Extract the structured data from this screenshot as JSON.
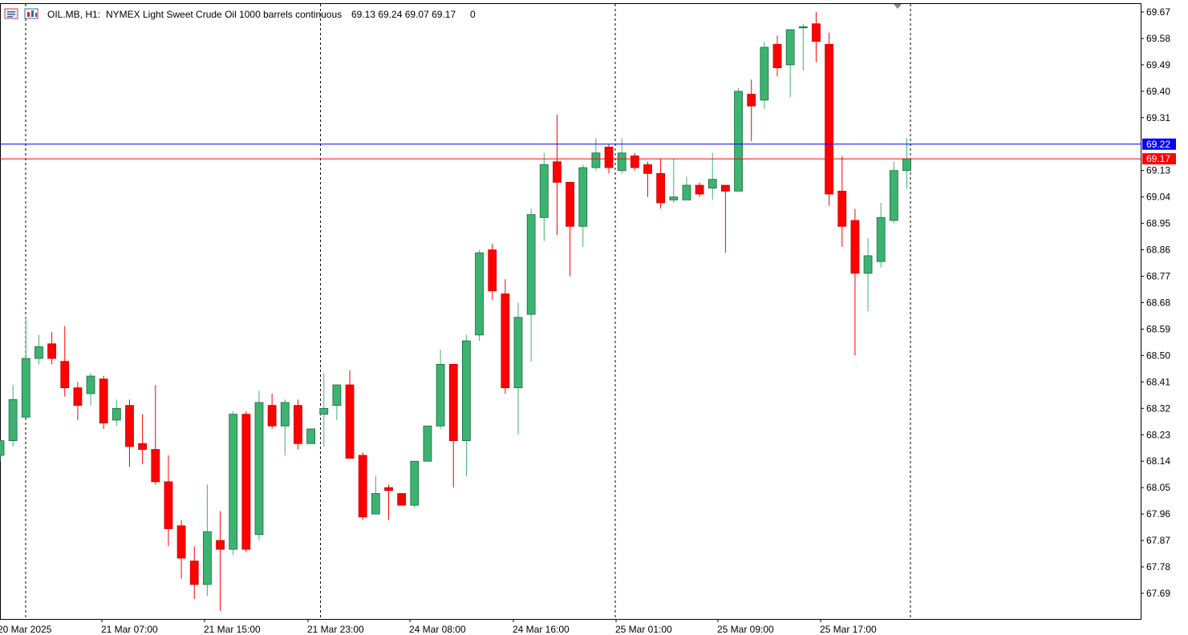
{
  "header": {
    "symbol": "OIL.MB, H1:",
    "description": "NYMEX Light Sweet Crude Oil 1000 barrels continuous",
    "ohlc": "69.13 69.24 69.07 69.17",
    "extra": "0",
    "icon_left": "terminal-icon",
    "icon_right": "chart-icon"
  },
  "colors": {
    "bull": "#3cb371",
    "bear": "#ff0000",
    "bid_line": "#ff0000",
    "ask_line": "#0000ff",
    "grid": "#000000",
    "background": "#ffffff"
  },
  "chart_data": {
    "type": "candlestick",
    "symbol": "OIL.MB",
    "timeframe": "H1",
    "y_ticks": [
      "69.67",
      "69.58",
      "69.49",
      "69.40",
      "69.31",
      "69.13",
      "69.04",
      "68.95",
      "68.86",
      "68.77",
      "68.68",
      "68.59",
      "68.50",
      "68.41",
      "68.32",
      "68.23",
      "68.14",
      "68.05",
      "67.96",
      "67.87",
      "67.78",
      "67.69"
    ],
    "x_ticks": [
      "20 Mar 2025",
      "21 Mar 07:00",
      "21 Mar 15:00",
      "21 Mar 23:00",
      "24 Mar 08:00",
      "24 Mar 16:00",
      "25 Mar 01:00",
      "25 Mar 09:00",
      "25 Mar 17:00"
    ],
    "session_separators": [
      "21 Mar",
      "22 Mar",
      "25 Mar",
      "26 Mar"
    ],
    "ylim": [
      67.625,
      69.69
    ],
    "price_lines": [
      {
        "label": "69.22",
        "value": 69.22,
        "kind": "ask"
      },
      {
        "label": "69.17",
        "value": 69.17,
        "kind": "bid"
      }
    ],
    "candles": [
      {
        "o": 68.16,
        "h": 68.21,
        "l": 68.14,
        "c": 68.21
      },
      {
        "o": 68.21,
        "h": 68.4,
        "l": 68.19,
        "c": 68.35
      },
      {
        "o": 68.29,
        "h": 68.63,
        "l": 68.29,
        "c": 68.49
      },
      {
        "o": 68.49,
        "h": 68.57,
        "l": 68.47,
        "c": 68.53
      },
      {
        "o": 68.54,
        "h": 68.58,
        "l": 68.47,
        "c": 68.49
      },
      {
        "o": 68.48,
        "h": 68.6,
        "l": 68.36,
        "c": 68.39
      },
      {
        "o": 68.39,
        "h": 68.41,
        "l": 68.28,
        "c": 68.33
      },
      {
        "o": 68.37,
        "h": 68.44,
        "l": 68.33,
        "c": 68.43
      },
      {
        "o": 68.42,
        "h": 68.43,
        "l": 68.25,
        "c": 68.27
      },
      {
        "o": 68.28,
        "h": 68.35,
        "l": 68.26,
        "c": 68.32
      },
      {
        "o": 68.33,
        "h": 68.35,
        "l": 68.12,
        "c": 68.19
      },
      {
        "o": 68.2,
        "h": 68.3,
        "l": 68.13,
        "c": 68.18
      },
      {
        "o": 68.18,
        "h": 68.4,
        "l": 68.06,
        "c": 68.07
      },
      {
        "o": 68.07,
        "h": 68.16,
        "l": 67.85,
        "c": 67.91
      },
      {
        "o": 67.92,
        "h": 67.94,
        "l": 67.74,
        "c": 67.81
      },
      {
        "o": 67.8,
        "h": 67.85,
        "l": 67.67,
        "c": 67.72
      },
      {
        "o": 67.72,
        "h": 68.06,
        "l": 67.68,
        "c": 67.9
      },
      {
        "o": 67.87,
        "h": 67.97,
        "l": 67.63,
        "c": 67.84
      },
      {
        "o": 67.84,
        "h": 68.31,
        "l": 67.82,
        "c": 68.3
      },
      {
        "o": 68.3,
        "h": 68.31,
        "l": 67.83,
        "c": 67.84
      },
      {
        "o": 67.89,
        "h": 68.38,
        "l": 67.87,
        "c": 68.34
      },
      {
        "o": 68.33,
        "h": 68.37,
        "l": 68.25,
        "c": 68.26
      },
      {
        "o": 68.26,
        "h": 68.35,
        "l": 68.16,
        "c": 68.34
      },
      {
        "o": 68.33,
        "h": 68.35,
        "l": 68.18,
        "c": 68.2
      },
      {
        "o": 68.2,
        "h": 68.25,
        "l": 68.2,
        "c": 68.25
      },
      {
        "o": 68.3,
        "h": 68.44,
        "l": 68.19,
        "c": 68.32
      },
      {
        "o": 68.33,
        "h": 68.4,
        "l": 68.28,
        "c": 68.4
      },
      {
        "o": 68.4,
        "h": 68.45,
        "l": 68.15,
        "c": 68.15
      },
      {
        "o": 68.16,
        "h": 68.17,
        "l": 67.94,
        "c": 67.95
      },
      {
        "o": 67.96,
        "h": 68.09,
        "l": 67.96,
        "c": 68.03
      },
      {
        "o": 68.05,
        "h": 68.06,
        "l": 67.94,
        "c": 68.04
      },
      {
        "o": 68.03,
        "h": 68.03,
        "l": 67.99,
        "c": 67.99
      },
      {
        "o": 67.99,
        "h": 68.13,
        "l": 67.98,
        "c": 68.14
      },
      {
        "o": 68.14,
        "h": 68.26,
        "l": 68.14,
        "c": 68.26
      },
      {
        "o": 68.26,
        "h": 68.52,
        "l": 68.25,
        "c": 68.47
      },
      {
        "o": 68.47,
        "h": 68.47,
        "l": 68.05,
        "c": 68.21
      },
      {
        "o": 68.21,
        "h": 68.57,
        "l": 68.09,
        "c": 68.55
      },
      {
        "o": 68.57,
        "h": 68.86,
        "l": 68.55,
        "c": 68.85
      },
      {
        "o": 68.86,
        "h": 68.88,
        "l": 68.69,
        "c": 68.72
      },
      {
        "o": 68.71,
        "h": 68.76,
        "l": 68.37,
        "c": 68.39
      },
      {
        "o": 68.39,
        "h": 68.68,
        "l": 68.23,
        "c": 68.63
      },
      {
        "o": 68.64,
        "h": 69.0,
        "l": 68.48,
        "c": 68.98
      },
      {
        "o": 68.97,
        "h": 69.19,
        "l": 68.89,
        "c": 69.15
      },
      {
        "o": 69.16,
        "h": 69.32,
        "l": 68.91,
        "c": 69.09
      },
      {
        "o": 69.09,
        "h": 69.09,
        "l": 68.77,
        "c": 68.94
      },
      {
        "o": 68.94,
        "h": 69.15,
        "l": 68.87,
        "c": 69.14
      },
      {
        "o": 69.14,
        "h": 69.24,
        "l": 69.13,
        "c": 69.19
      },
      {
        "o": 69.21,
        "h": 69.22,
        "l": 69.12,
        "c": 69.14
      },
      {
        "o": 69.13,
        "h": 69.24,
        "l": 69.12,
        "c": 69.19
      },
      {
        "o": 69.18,
        "h": 69.19,
        "l": 69.13,
        "c": 69.14
      },
      {
        "o": 69.15,
        "h": 69.16,
        "l": 69.04,
        "c": 69.12
      },
      {
        "o": 69.12,
        "h": 69.17,
        "l": 69.0,
        "c": 69.02
      },
      {
        "o": 69.03,
        "h": 69.17,
        "l": 69.02,
        "c": 69.04
      },
      {
        "o": 69.03,
        "h": 69.11,
        "l": 69.03,
        "c": 69.08
      },
      {
        "o": 69.08,
        "h": 69.09,
        "l": 69.04,
        "c": 69.05
      },
      {
        "o": 69.07,
        "h": 69.19,
        "l": 69.03,
        "c": 69.1
      },
      {
        "o": 69.08,
        "h": 69.08,
        "l": 68.85,
        "c": 69.06
      },
      {
        "o": 69.06,
        "h": 69.41,
        "l": 69.06,
        "c": 69.4
      },
      {
        "o": 69.39,
        "h": 69.44,
        "l": 69.23,
        "c": 69.35
      },
      {
        "o": 69.37,
        "h": 69.57,
        "l": 69.34,
        "c": 69.55
      },
      {
        "o": 69.56,
        "h": 69.59,
        "l": 69.45,
        "c": 69.48
      },
      {
        "o": 69.49,
        "h": 69.61,
        "l": 69.38,
        "c": 69.61
      },
      {
        "o": 69.62,
        "h": 69.63,
        "l": 69.47,
        "c": 69.62
      },
      {
        "o": 69.63,
        "h": 69.67,
        "l": 69.5,
        "c": 69.57
      },
      {
        "o": 69.56,
        "h": 69.6,
        "l": 69.01,
        "c": 69.05
      },
      {
        "o": 69.06,
        "h": 69.18,
        "l": 68.87,
        "c": 68.94
      },
      {
        "o": 68.96,
        "h": 69.0,
        "l": 68.5,
        "c": 68.78
      },
      {
        "o": 68.78,
        "h": 68.9,
        "l": 68.65,
        "c": 68.84
      },
      {
        "o": 68.82,
        "h": 69.02,
        "l": 68.8,
        "c": 68.97
      },
      {
        "o": 68.96,
        "h": 69.16,
        "l": 68.95,
        "c": 69.13
      },
      {
        "o": 69.13,
        "h": 69.24,
        "l": 69.07,
        "c": 69.17
      }
    ]
  }
}
